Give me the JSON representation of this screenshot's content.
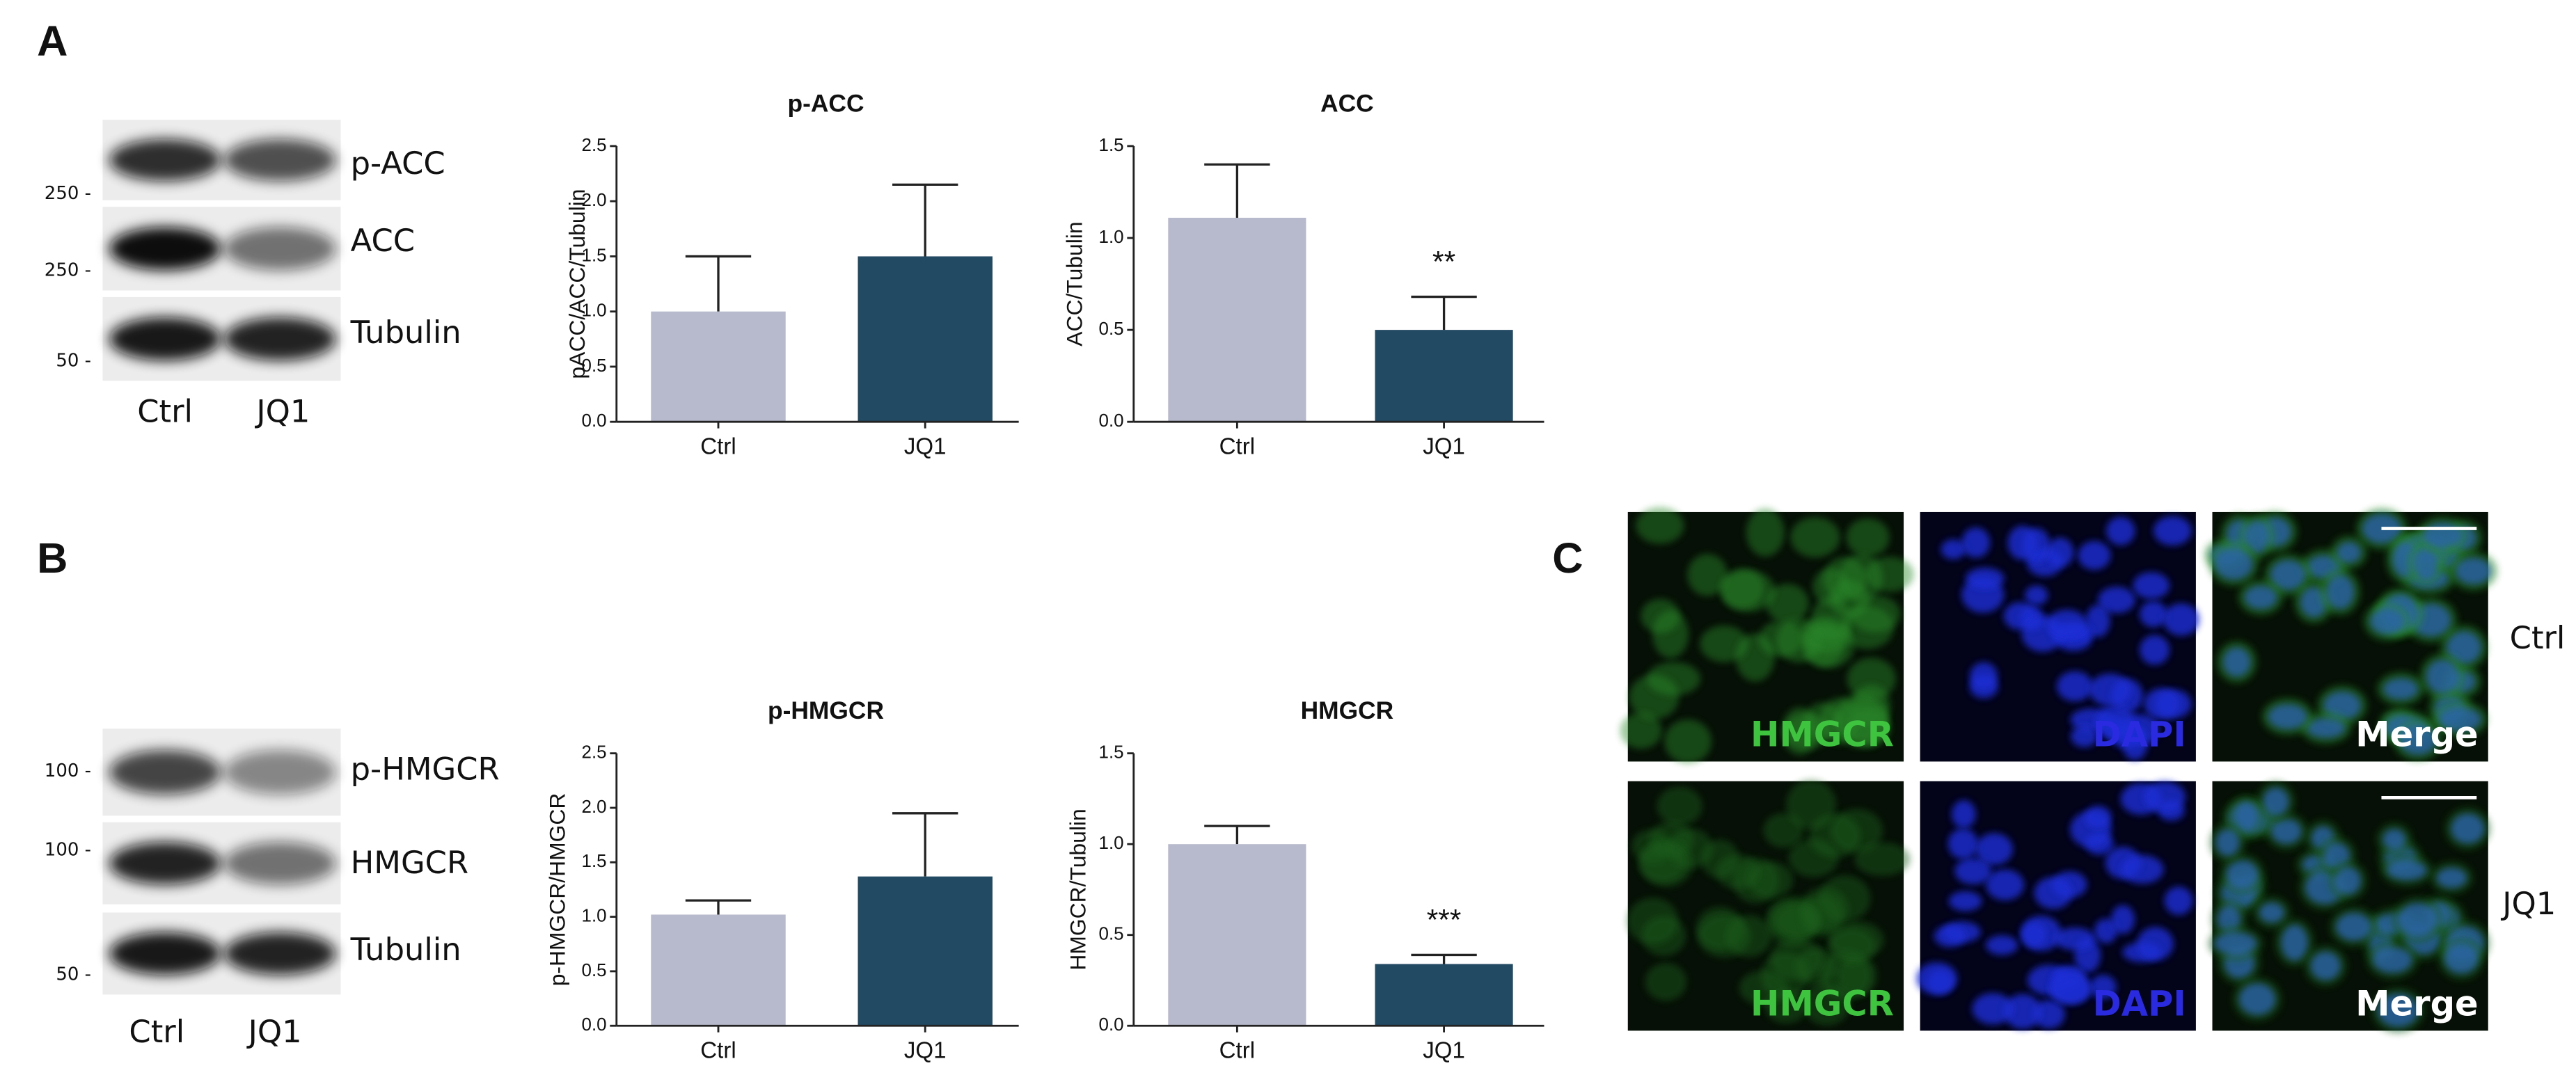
{
  "panel_labels": [
    "A",
    "B",
    "C"
  ],
  "blots": [
    {
      "rows": [
        {
          "label": "p-ACC",
          "marker": "250 -"
        },
        {
          "label": "ACC",
          "marker": "250 -"
        },
        {
          "label": "Tubulin",
          "marker": "50 -"
        }
      ],
      "lanes": [
        "Ctrl",
        "JQ1"
      ]
    },
    {
      "rows": [
        {
          "label": "p-HMGCR",
          "marker": "100 -"
        },
        {
          "label": "HMGCR",
          "marker": "100 -"
        },
        {
          "label": "Tubulin",
          "marker": "50 -"
        }
      ],
      "lanes": [
        "Ctrl",
        "JQ1"
      ]
    }
  ],
  "microscopy": {
    "channels": [
      "HMGCR",
      "DAPI",
      "Merge"
    ],
    "conditions": [
      "Ctrl",
      "JQ1"
    ]
  },
  "chart_data": [
    {
      "type": "bar",
      "title": "p-ACC",
      "y_label": "pACC/ACC/Tubulin",
      "categories": [
        "Ctrl",
        "JQ1"
      ],
      "values": [
        1.0,
        1.5
      ],
      "errors": [
        0.5,
        0.65
      ],
      "colors": [
        "#b7b9cc",
        "#234a63"
      ],
      "ylim": [
        0,
        2.5
      ],
      "yticks": [
        {
          "value": 0,
          "label": "0.0"
        },
        0.5,
        {
          "value": 1,
          "label": "1.0"
        },
        1.5,
        {
          "value": 2,
          "label": "2.0"
        },
        2.5
      ],
      "grid": false
    },
    {
      "type": "bar",
      "title": "ACC",
      "y_label": "ACC/Tubulin",
      "categories": [
        "Ctrl",
        "JQ1"
      ],
      "values": [
        1.11,
        0.5
      ],
      "errors": [
        0.29,
        0.18
      ],
      "colors": [
        "#b7b9cc",
        "#234a63"
      ],
      "ylim": [
        0,
        1.5
      ],
      "yticks": [
        {
          "value": 0,
          "label": "0.0"
        },
        0.5,
        {
          "value": 1,
          "label": "1.0"
        },
        1.5
      ],
      "annotation": "**",
      "grid": false
    },
    {
      "type": "bar",
      "title": "p-HMGCR",
      "y_label": "p-HMGCR/HMGCR",
      "categories": [
        "Ctrl",
        "JQ1"
      ],
      "values": [
        1.02,
        1.37
      ],
      "errors": [
        0.13,
        0.58
      ],
      "colors": [
        "#b7b9cc",
        "#234a63"
      ],
      "ylim": [
        0,
        2.5
      ],
      "yticks": [
        {
          "value": 0,
          "label": "0.0"
        },
        0.5,
        {
          "value": 1,
          "label": "1.0"
        },
        1.5,
        {
          "value": 2,
          "label": "2.0"
        },
        2.5
      ],
      "grid": false
    },
    {
      "type": "bar",
      "title": "HMGCR",
      "y_label": "HMGCR/Tubulin",
      "categories": [
        "Ctrl",
        "JQ1"
      ],
      "values": [
        1.0,
        0.34
      ],
      "errors": [
        0.1,
        0.05
      ],
      "colors": [
        "#b7b9cc",
        "#234a63"
      ],
      "ylim": [
        0,
        1.5
      ],
      "yticks": [
        {
          "value": 0,
          "label": "0.0"
        },
        0.5,
        {
          "value": 1,
          "label": "1.0"
        },
        1.5
      ],
      "annotation": "***",
      "grid": false
    }
  ]
}
